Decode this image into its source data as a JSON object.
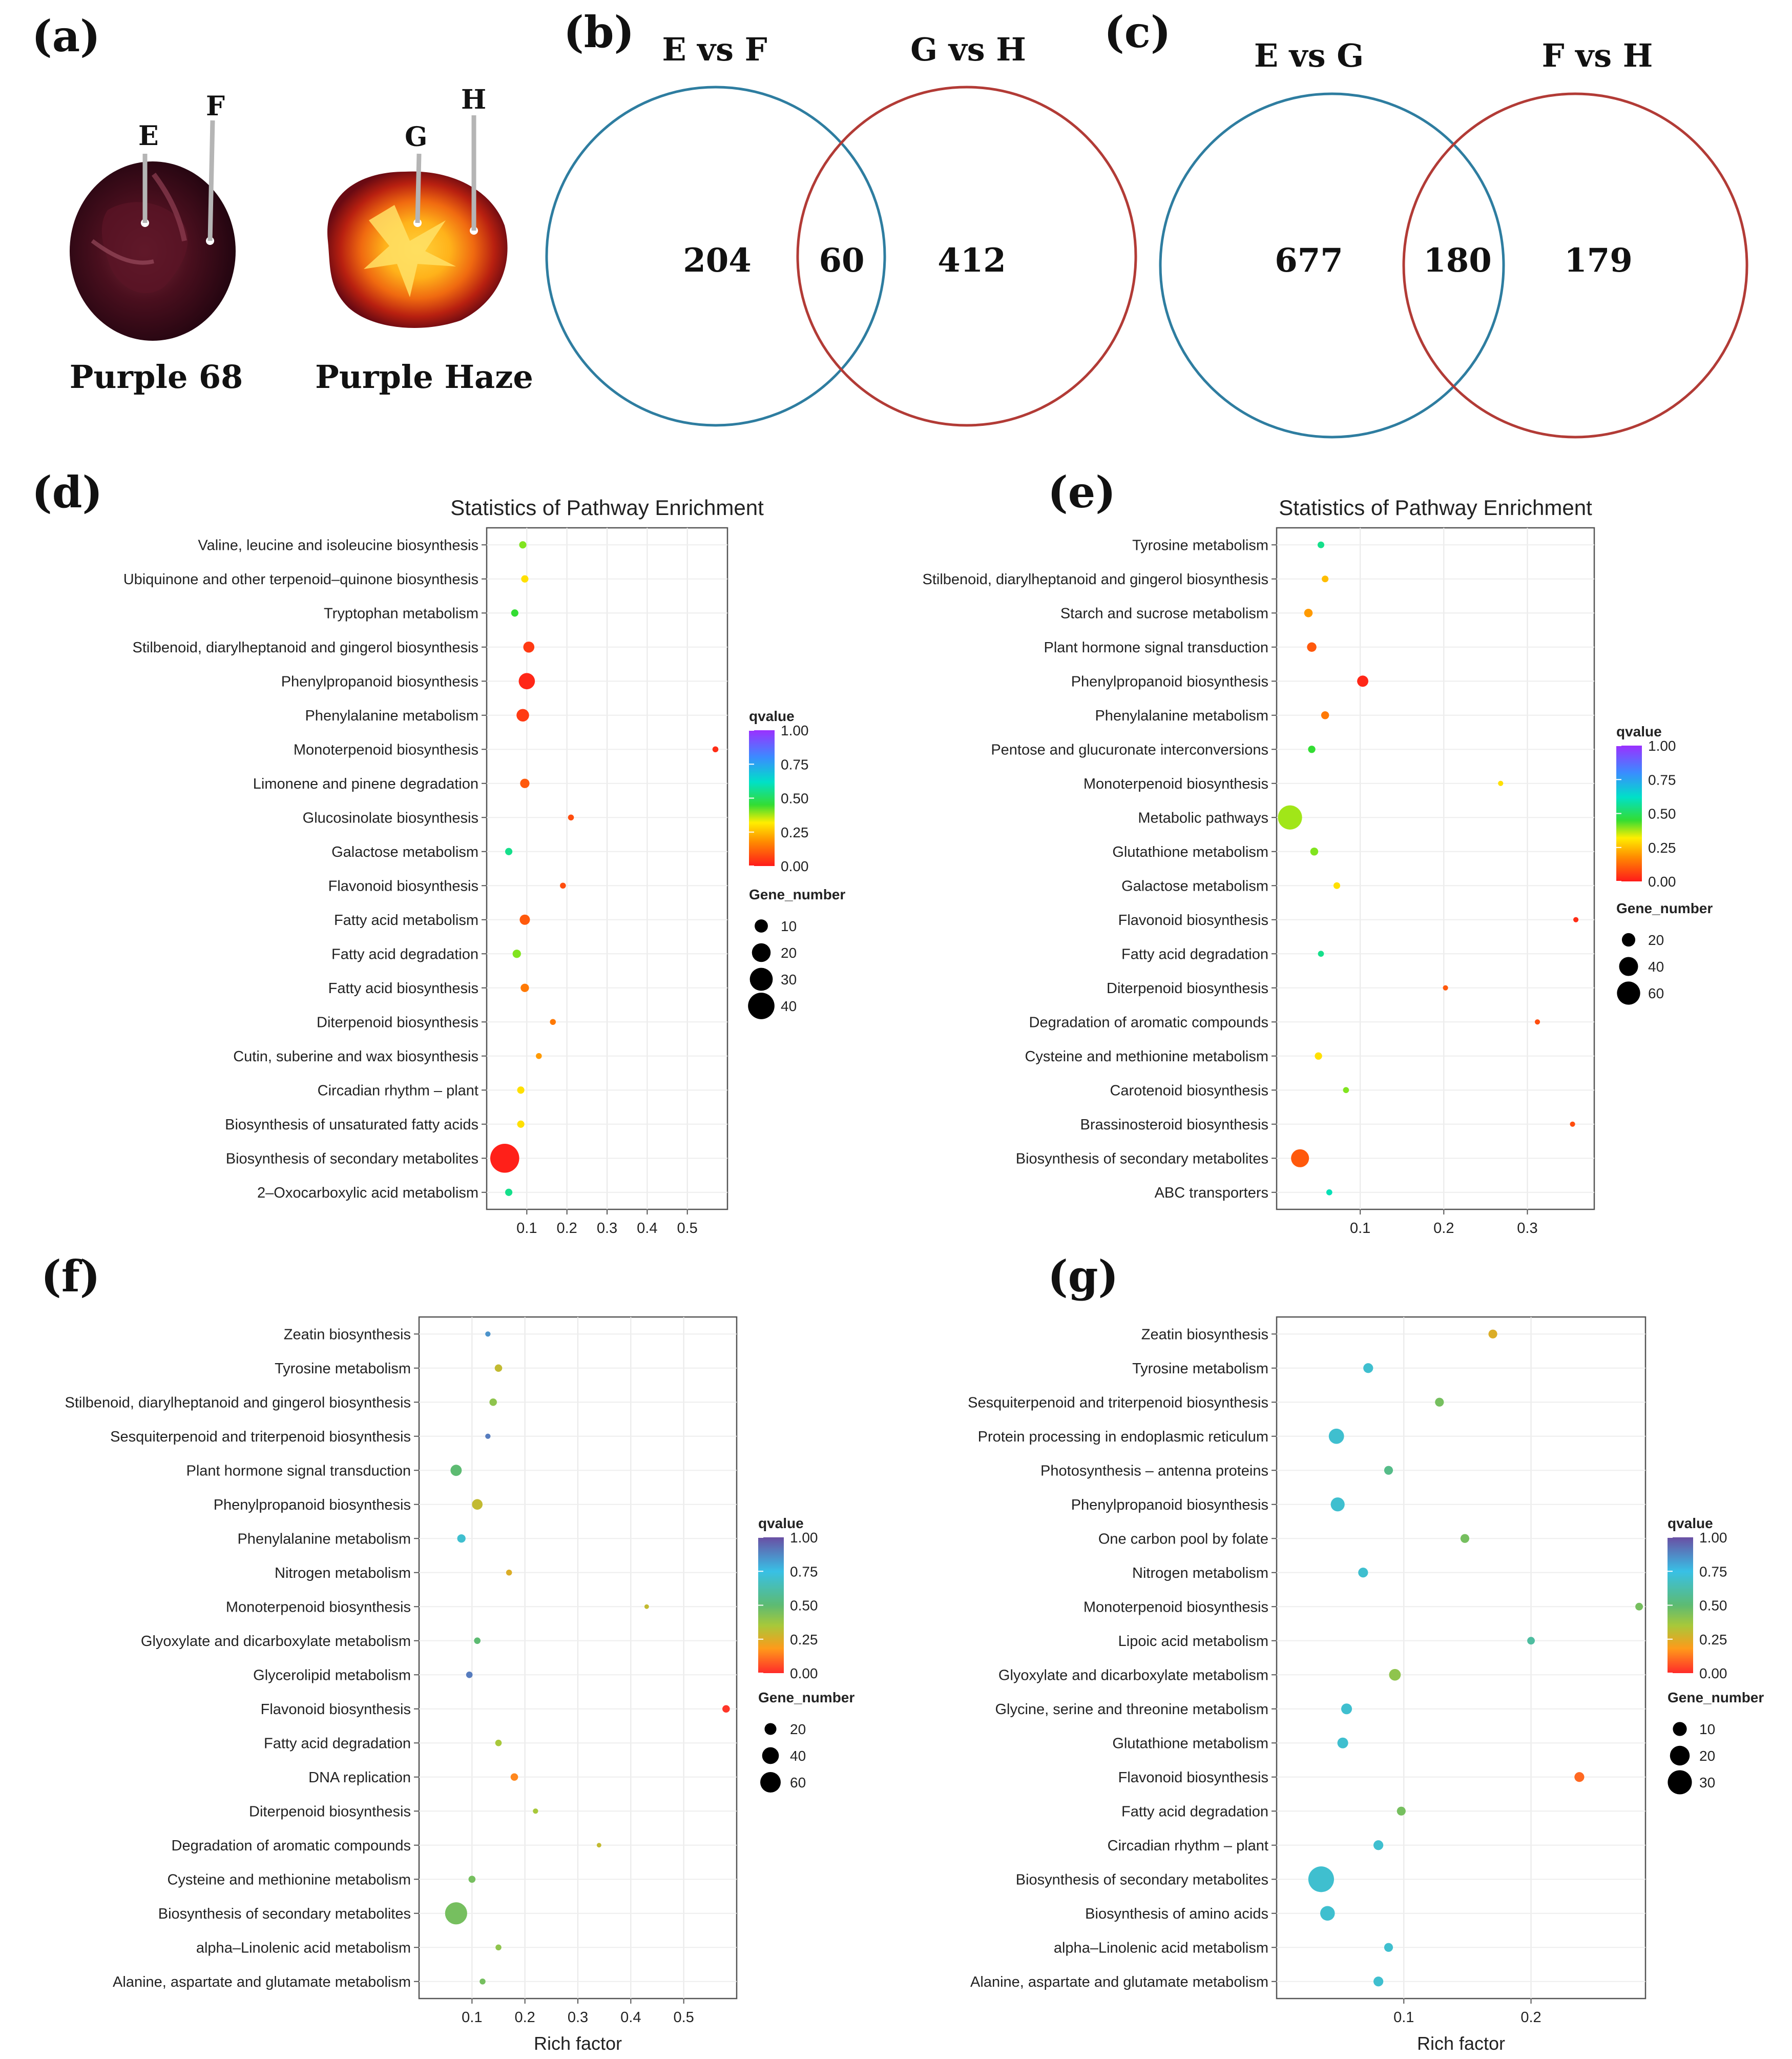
{
  "panel_a": {
    "label": "(a)",
    "images": [
      {
        "caption": "Purple 68",
        "markers": [
          "E",
          "F"
        ]
      },
      {
        "caption": "Purple Haze",
        "markers": [
          "G",
          "H"
        ]
      }
    ]
  },
  "venn": [
    {
      "label": "(b)",
      "left_title": "E vs F",
      "right_title": "G vs H",
      "left_only": "204",
      "overlap": "60",
      "right_only": "412",
      "left_color": "#2e7da0",
      "right_color": "#b23b36"
    },
    {
      "label": "(c)",
      "left_title": "E vs G",
      "right_title": "F vs H",
      "left_only": "677",
      "overlap": "180",
      "right_only": "179",
      "left_color": "#2e7da0",
      "right_color": "#b23b36"
    }
  ],
  "chart_data": [
    {
      "label": "(d)",
      "type": "scatter",
      "title": "Statistics of Pathway Enrichment",
      "xlabel": "",
      "xlim": [
        0.0,
        0.6
      ],
      "xticks": [
        "0.1",
        "0.2",
        "0.3",
        "0.4",
        "0.5"
      ],
      "palette": "rainbow",
      "color_legend": {
        "title": "qvalue",
        "ticks": [
          "1.00",
          "0.75",
          "0.50",
          "0.25",
          "0.00"
        ]
      },
      "size_legend": {
        "title": "Gene_number",
        "ticks": [
          "10",
          "20",
          "30",
          "40"
        ]
      },
      "categories": [
        "Valine, leucine and isoleucine biosynthesis",
        "Ubiquinone and other terpenoid–quinone biosynthesis",
        "Tryptophan metabolism",
        "Stilbenoid, diarylheptanoid and gingerol biosynthesis",
        "Phenylpropanoid biosynthesis",
        "Phenylalanine metabolism",
        "Monoterpenoid biosynthesis",
        "Limonene and pinene degradation",
        "Glucosinolate biosynthesis",
        "Galactose metabolism",
        "Flavonoid biosynthesis",
        "Fatty acid metabolism",
        "Fatty acid degradation",
        "Fatty acid biosynthesis",
        "Diterpenoid biosynthesis",
        "Cutin, suberine and wax biosynthesis",
        "Circadian rhythm – plant",
        "Biosynthesis of unsaturated fatty acids",
        "Biosynthesis of secondary metabolites",
        "2–Oxocarboxylic acid metabolism"
      ],
      "x": [
        0.09,
        0.095,
        0.07,
        0.105,
        0.1,
        0.09,
        0.57,
        0.095,
        0.21,
        0.055,
        0.19,
        0.095,
        0.075,
        0.095,
        0.165,
        0.13,
        0.085,
        0.085,
        0.045,
        0.055
      ],
      "qvalue": [
        0.4,
        0.3,
        0.45,
        0.05,
        0.02,
        0.05,
        0.03,
        0.1,
        0.08,
        0.55,
        0.08,
        0.1,
        0.4,
        0.15,
        0.15,
        0.2,
        0.3,
        0.3,
        0.01,
        0.55
      ],
      "gene_number": [
        3,
        3,
        3,
        7,
        15,
        9,
        2,
        5,
        2,
        3,
        2,
        6,
        4,
        4,
        2,
        2,
        3,
        3,
        48,
        3
      ]
    },
    {
      "label": "(e)",
      "type": "scatter",
      "title": "Statistics of Pathway Enrichment",
      "xlabel": "",
      "xlim": [
        0.0,
        0.38
      ],
      "xticks": [
        "0.1",
        "0.2",
        "0.3"
      ],
      "palette": "rainbow",
      "color_legend": {
        "title": "qvalue",
        "ticks": [
          "1.00",
          "0.75",
          "0.50",
          "0.25",
          "0.00"
        ]
      },
      "size_legend": {
        "title": "Gene_number",
        "ticks": [
          "20",
          "40",
          "60"
        ]
      },
      "categories": [
        "Tyrosine metabolism",
        "Stilbenoid, diarylheptanoid and gingerol biosynthesis",
        "Starch and sucrose metabolism",
        "Plant hormone signal transduction",
        "Phenylpropanoid biosynthesis",
        "Phenylalanine metabolism",
        "Pentose and glucuronate interconversions",
        "Monoterpenoid biosynthesis",
        "Metabolic pathways",
        "Glutathione metabolism",
        "Galactose metabolism",
        "Flavonoid biosynthesis",
        "Fatty acid degradation",
        "Diterpenoid biosynthesis",
        "Degradation of aromatic compounds",
        "Cysteine and methionine metabolism",
        "Carotenoid biosynthesis",
        "Brassinosteroid biosynthesis",
        "Biosynthesis of secondary metabolites",
        "ABC transporters"
      ],
      "x": [
        0.053,
        0.058,
        0.038,
        0.042,
        0.103,
        0.058,
        0.042,
        0.268,
        0.016,
        0.045,
        0.072,
        0.358,
        0.053,
        0.202,
        0.312,
        0.05,
        0.083,
        0.354,
        0.028,
        0.063
      ],
      "qvalue": [
        0.55,
        0.25,
        0.2,
        0.1,
        0.02,
        0.15,
        0.45,
        0.3,
        0.38,
        0.4,
        0.3,
        0.03,
        0.55,
        0.1,
        0.08,
        0.3,
        0.4,
        0.08,
        0.1,
        0.6
      ],
      "gene_number": [
        5,
        5,
        8,
        10,
        14,
        7,
        6,
        3,
        65,
        7,
        5,
        3,
        4,
        3,
        3,
        6,
        4,
        3,
        36,
        4
      ]
    },
    {
      "label": "(f)",
      "type": "scatter",
      "title": "",
      "xlabel": "Rich factor",
      "xlim": [
        0.0,
        0.6
      ],
      "xticks": [
        "0.1",
        "0.2",
        "0.3",
        "0.4",
        "0.5"
      ],
      "palette": "viridis-like",
      "color_legend": {
        "title": "qvalue",
        "ticks": [
          "1.00",
          "0.75",
          "0.50",
          "0.25",
          "0.00"
        ]
      },
      "size_legend": {
        "title": "Gene_number",
        "ticks": [
          "20",
          "40",
          "60"
        ]
      },
      "categories": [
        "Zeatin biosynthesis",
        "Tyrosine metabolism",
        "Stilbenoid, diarylheptanoid and gingerol biosynthesis",
        "Sesquiterpenoid and triterpenoid biosynthesis",
        "Plant hormone signal transduction",
        "Phenylpropanoid biosynthesis",
        "Phenylalanine metabolism",
        "Nitrogen metabolism",
        "Monoterpenoid biosynthesis",
        "Glyoxylate and dicarboxylate metabolism",
        "Glycerolipid metabolism",
        "Flavonoid biosynthesis",
        "Fatty acid degradation",
        "DNA replication",
        "Diterpenoid biosynthesis",
        "Degradation of aromatic compounds",
        "Cysteine and methionine metabolism",
        "Biosynthesis of secondary metabolites",
        "alpha–Linolenic acid metabolism",
        "Alanine, aspartate and glutamate metabolism"
      ],
      "x": [
        0.13,
        0.15,
        0.14,
        0.13,
        0.07,
        0.11,
        0.08,
        0.17,
        0.43,
        0.11,
        0.095,
        0.58,
        0.15,
        0.18,
        0.22,
        0.34,
        0.1,
        0.07,
        0.15,
        0.12
      ],
      "qvalue": [
        0.85,
        0.3,
        0.4,
        0.9,
        0.5,
        0.3,
        0.7,
        0.25,
        0.3,
        0.5,
        0.9,
        0.02,
        0.35,
        0.15,
        0.35,
        0.3,
        0.45,
        0.45,
        0.4,
        0.45
      ],
      "gene_number": [
        4,
        8,
        8,
        4,
        18,
        16,
        10,
        5,
        3,
        6,
        6,
        8,
        6,
        8,
        4,
        3,
        7,
        70,
        5,
        5
      ]
    },
    {
      "label": "(g)",
      "type": "scatter",
      "title": "",
      "xlabel": "Rich factor",
      "xlim": [
        0.0,
        0.29
      ],
      "xticks": [
        "0.1",
        "0.2"
      ],
      "palette": "viridis-like",
      "color_legend": {
        "title": "qvalue",
        "ticks": [
          "1.00",
          "0.75",
          "0.50",
          "0.25",
          "0.00"
        ]
      },
      "size_legend": {
        "title": "Gene_number",
        "ticks": [
          "10",
          "20",
          "30"
        ]
      },
      "categories": [
        "Zeatin biosynthesis",
        "Tyrosine metabolism",
        "Sesquiterpenoid and triterpenoid biosynthesis",
        "Protein processing in endoplasmic reticulum",
        "Photosynthesis – antenna proteins",
        "Phenylpropanoid biosynthesis",
        "One carbon pool by folate",
        "Nitrogen metabolism",
        "Monoterpenoid biosynthesis",
        "Lipoic acid metabolism",
        "Glyoxylate and dicarboxylate metabolism",
        "Glycine, serine and threonine metabolism",
        "Glutathione metabolism",
        "Flavonoid biosynthesis",
        "Fatty acid degradation",
        "Circadian rhythm – plant",
        "Biosynthesis of secondary metabolites",
        "Biosynthesis of amino acids",
        "alpha–Linolenic acid metabolism",
        "Alanine, aspartate and glutamate metabolism"
      ],
      "x": [
        0.17,
        0.072,
        0.128,
        0.047,
        0.088,
        0.048,
        0.148,
        0.068,
        0.285,
        0.2,
        0.093,
        0.055,
        0.052,
        0.238,
        0.098,
        0.08,
        0.035,
        0.04,
        0.088,
        0.08
      ],
      "qvalue": [
        0.25,
        0.7,
        0.45,
        0.7,
        0.55,
        0.7,
        0.45,
        0.7,
        0.45,
        0.6,
        0.4,
        0.7,
        0.7,
        0.1,
        0.45,
        0.7,
        0.7,
        0.7,
        0.7,
        0.7
      ],
      "gene_number": [
        4,
        5,
        4,
        12,
        4,
        10,
        4,
        5,
        3,
        3,
        7,
        6,
        6,
        5,
        4,
        5,
        34,
        11,
        4,
        5
      ]
    }
  ]
}
